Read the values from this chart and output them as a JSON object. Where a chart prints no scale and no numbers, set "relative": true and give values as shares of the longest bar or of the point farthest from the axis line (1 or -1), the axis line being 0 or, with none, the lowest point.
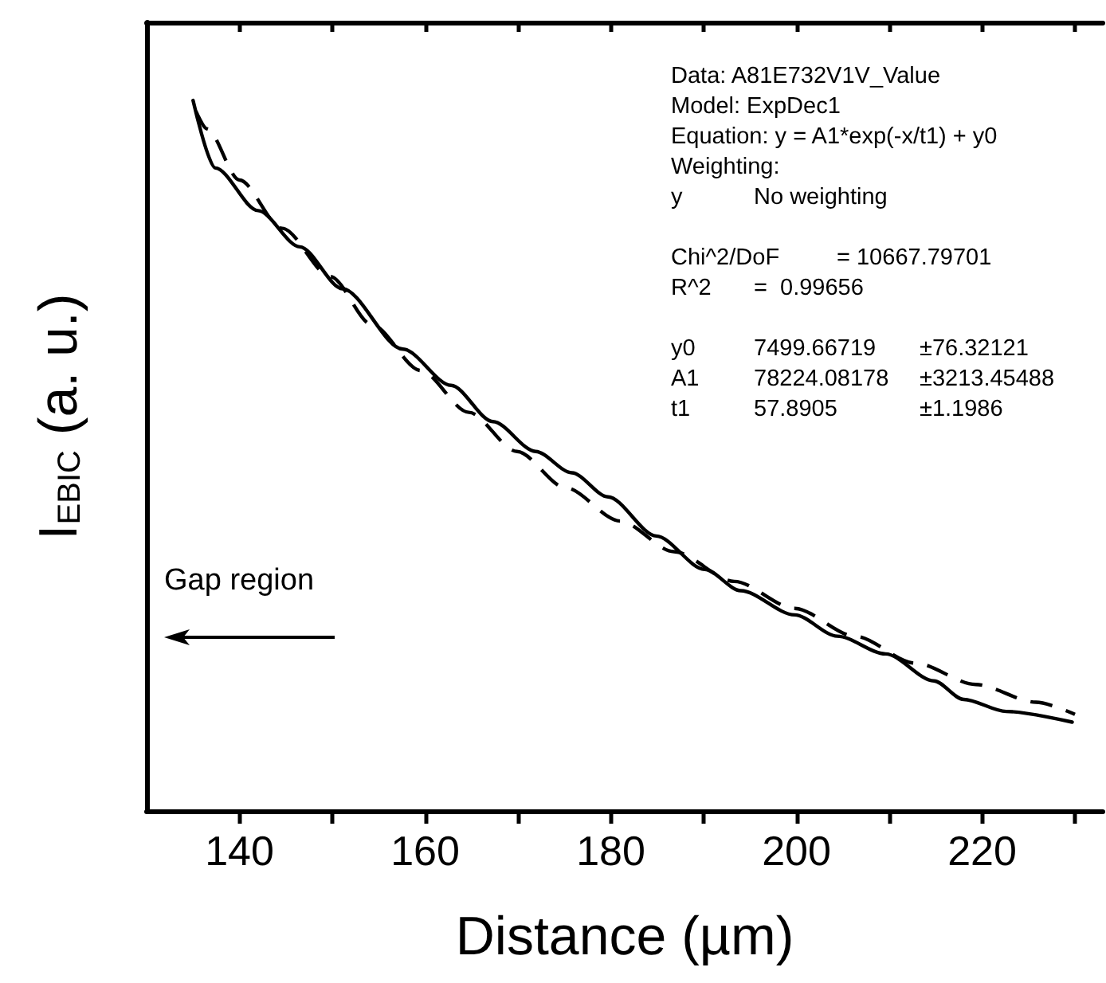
{
  "chart_data": {
    "type": "line",
    "relative": true,
    "xlabel": "Distance (µm)",
    "ylabel": "I$_{EBIC}$ (a. u.)",
    "xlim": [
      130,
      233
    ],
    "xticks": [
      140,
      {
        "value": 150,
        "label": null
      },
      160,
      {
        "value": 170,
        "label": null
      },
      180,
      {
        "value": 190,
        "label": null
      },
      200,
      {
        "value": 210,
        "label": null
      },
      220,
      {
        "value": 230,
        "label": null
      }
    ],
    "grid": false,
    "marker": "none",
    "series": [
      {
        "color": "#000000",
        "line_style": "solid",
        "x": [
          135,
          137.4,
          142,
          146.5,
          151.1,
          157.6,
          162.8,
          167.3,
          171.9,
          175.8,
          179.7,
          184.9,
          190.1,
          194,
          199.8,
          204.4,
          209.6,
          214.8,
          218,
          222.6,
          229.7
        ],
        "values": [
          1.0,
          0.905,
          0.845,
          0.794,
          0.735,
          0.65,
          0.599,
          0.548,
          0.506,
          0.476,
          0.442,
          0.387,
          0.34,
          0.31,
          0.276,
          0.246,
          0.221,
          0.183,
          0.157,
          0.14,
          0.125
        ]
      },
      {
        "color": "#000000",
        "line_style": "dashed",
        "x": [
          135.3,
          136.5,
          140,
          144.6,
          149.8,
          154.3,
          159.5,
          164.7,
          169.9,
          175.1,
          181,
          186.8,
          193.3,
          199.8,
          206.3,
          212.8,
          219.3,
          225.8,
          230
        ],
        "values": [
          0.985,
          0.96,
          0.888,
          0.82,
          0.752,
          0.684,
          0.62,
          0.561,
          0.506,
          0.455,
          0.408,
          0.365,
          0.323,
          0.285,
          0.246,
          0.208,
          0.178,
          0.153,
          0.136
        ]
      }
    ],
    "annotations": [
      "Data: A81E732V1V_Value\nModel: ExpDec1\nEquation: y = A1*exp(-x/t1) + y0\nWeighting:\ny\tNo weighting",
      "Chi^2/DoF\t= 10667.79701\nR^2\t=  0.99656",
      "y0\t7499.66719\t±76.32121\nA1\t78224.08178\t±3213.45488\nt1\t57.8905\t±1.1986",
      "Gap region"
    ]
  }
}
